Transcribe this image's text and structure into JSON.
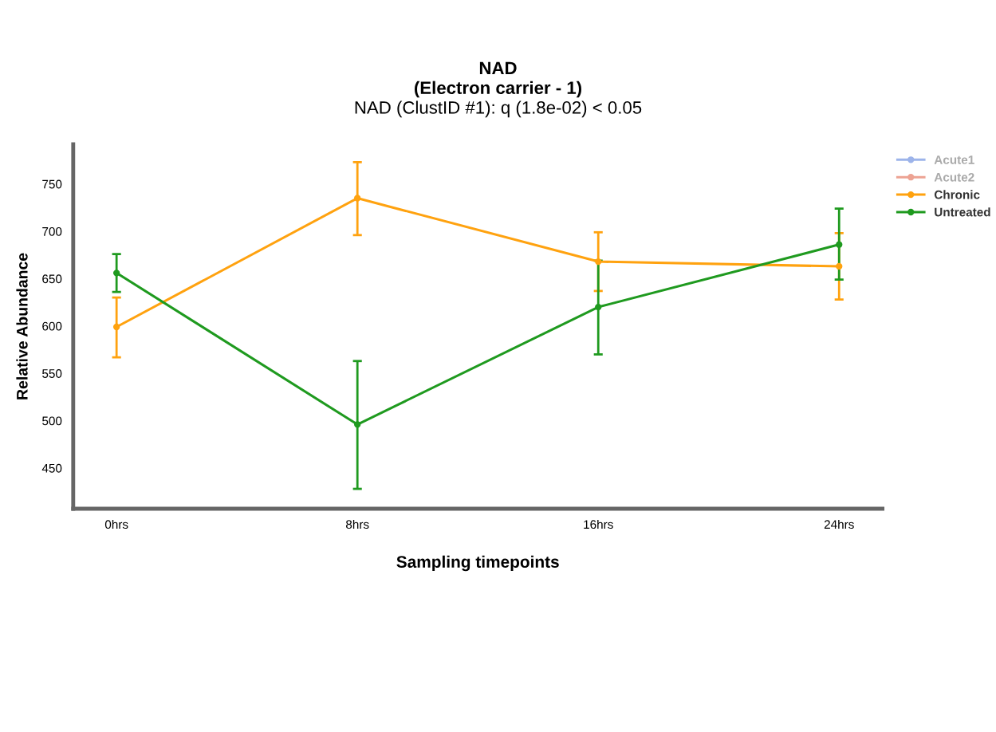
{
  "chart_data": {
    "type": "line",
    "title": "NAD\n(Electron carrier - 1)\nNAD (ClustID #1): q (1.8e-02) < 0.05",
    "xlabel": "Sampling timepoints",
    "ylabel": "Relative Abundance",
    "categories": [
      "0hrs",
      "8hrs",
      "16hrs",
      "24hrs"
    ],
    "series": [
      {
        "name": "Acute1",
        "color": "#9db4ea",
        "values": [
          null,
          null,
          null,
          null
        ]
      },
      {
        "name": "Acute2",
        "color": "#eda393",
        "values": [
          null,
          null,
          null,
          null
        ]
      },
      {
        "name": "Chronic",
        "color": "#ffa20f",
        "values": [
          599,
          735,
          668,
          663
        ],
        "errors": [
          [
            567,
            630
          ],
          [
            696,
            773
          ],
          [
            637,
            699
          ],
          [
            628,
            698
          ]
        ]
      },
      {
        "name": "Untreated",
        "color": "#1f9a1f",
        "values": [
          656,
          496,
          620,
          686
        ],
        "errors": [
          [
            636,
            676
          ],
          [
            428,
            563
          ],
          [
            570,
            669
          ],
          [
            649,
            724
          ]
        ]
      }
    ],
    "ylim": [
      407,
      792
    ],
    "yticks": [
      450,
      500,
      550,
      600,
      650,
      700,
      750
    ],
    "grid": false,
    "legend": "top right",
    "marker": "circle",
    "line_style": "solid"
  }
}
